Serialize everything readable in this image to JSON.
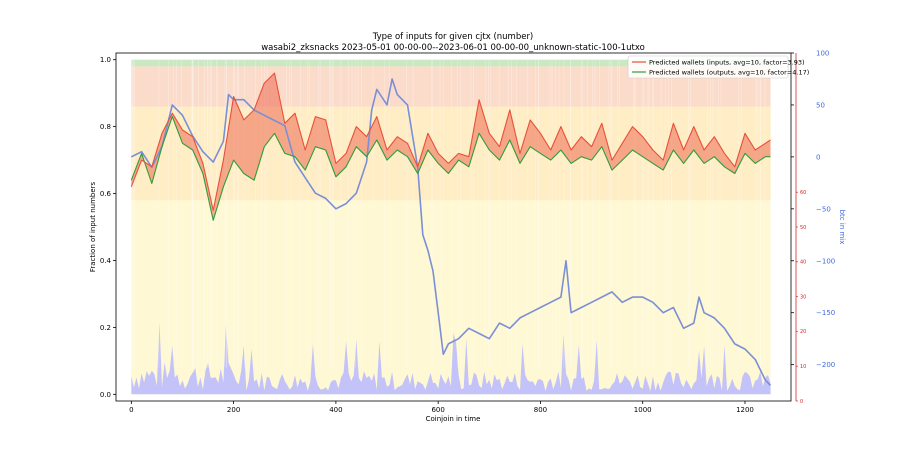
{
  "chart_data": {
    "type": "line",
    "title": "Type of inputs for given cjtx (number)",
    "subtitle": "wasabi2_zksnacks 2023-05-01 00-00-00--2023-06-01 00-00-00_unknown-static-100-1utxo",
    "xlabel": "Coinjoin in time",
    "ylabel": "Fraction of input numbers",
    "y2label": "btc in mix",
    "xlim": [
      -30,
      1290
    ],
    "ylim": [
      -0.02,
      1.02
    ],
    "y2lim": [
      -235,
      100
    ],
    "y3lim": [
      0,
      100
    ],
    "xticks": [
      "0",
      "200",
      "400",
      "600",
      "800",
      "1000",
      "1200"
    ],
    "yticks": [
      "0.0",
      "0.2",
      "0.4",
      "0.6",
      "0.8",
      "1.0"
    ],
    "y2ticks": [
      "100",
      "50",
      "0",
      "−50",
      "−100",
      "−150",
      "−200"
    ],
    "y3ticks": [
      "60",
      "50",
      "40",
      "30",
      "20",
      "10",
      "0"
    ],
    "legend_position": "top-right",
    "grid": false,
    "series": [
      {
        "name": "Predicted wallets (inputs, avg=10, factor=3.93)",
        "color": "#e8503a",
        "axis": "fraction",
        "points": [
          [
            0,
            0.62
          ],
          [
            20,
            0.7
          ],
          [
            40,
            0.68
          ],
          [
            60,
            0.78
          ],
          [
            80,
            0.84
          ],
          [
            100,
            0.79
          ],
          [
            120,
            0.77
          ],
          [
            140,
            0.69
          ],
          [
            160,
            0.55
          ],
          [
            180,
            0.7
          ],
          [
            200,
            0.89
          ],
          [
            220,
            0.82
          ],
          [
            240,
            0.85
          ],
          [
            260,
            0.93
          ],
          [
            280,
            0.96
          ],
          [
            300,
            0.81
          ],
          [
            320,
            0.84
          ],
          [
            340,
            0.73
          ],
          [
            360,
            0.83
          ],
          [
            380,
            0.82
          ],
          [
            400,
            0.69
          ],
          [
            420,
            0.72
          ],
          [
            440,
            0.8
          ],
          [
            460,
            0.77
          ],
          [
            480,
            0.83
          ],
          [
            500,
            0.73
          ],
          [
            520,
            0.77
          ],
          [
            540,
            0.75
          ],
          [
            560,
            0.68
          ],
          [
            580,
            0.78
          ],
          [
            600,
            0.72
          ],
          [
            620,
            0.69
          ],
          [
            640,
            0.72
          ],
          [
            660,
            0.71
          ],
          [
            680,
            0.88
          ],
          [
            700,
            0.78
          ],
          [
            720,
            0.74
          ],
          [
            740,
            0.85
          ],
          [
            760,
            0.72
          ],
          [
            780,
            0.82
          ],
          [
            800,
            0.78
          ],
          [
            820,
            0.73
          ],
          [
            840,
            0.8
          ],
          [
            860,
            0.73
          ],
          [
            880,
            0.77
          ],
          [
            900,
            0.74
          ],
          [
            920,
            0.81
          ],
          [
            940,
            0.7
          ],
          [
            960,
            0.75
          ],
          [
            980,
            0.8
          ],
          [
            1000,
            0.77
          ],
          [
            1020,
            0.73
          ],
          [
            1040,
            0.7
          ],
          [
            1060,
            0.81
          ],
          [
            1080,
            0.73
          ],
          [
            1100,
            0.8
          ],
          [
            1120,
            0.73
          ],
          [
            1140,
            0.77
          ],
          [
            1160,
            0.72
          ],
          [
            1180,
            0.68
          ],
          [
            1200,
            0.78
          ],
          [
            1220,
            0.73
          ],
          [
            1240,
            0.75
          ],
          [
            1250,
            0.76
          ]
        ]
      },
      {
        "name": "Predicted wallets (outputs, avg=10, factor=4.17)",
        "color": "#2e9e3a",
        "axis": "fraction",
        "points": [
          [
            0,
            0.64
          ],
          [
            20,
            0.72
          ],
          [
            40,
            0.63
          ],
          [
            60,
            0.74
          ],
          [
            80,
            0.83
          ],
          [
            100,
            0.75
          ],
          [
            120,
            0.73
          ],
          [
            140,
            0.66
          ],
          [
            160,
            0.52
          ],
          [
            180,
            0.62
          ],
          [
            200,
            0.7
          ],
          [
            220,
            0.66
          ],
          [
            240,
            0.64
          ],
          [
            260,
            0.74
          ],
          [
            280,
            0.78
          ],
          [
            300,
            0.72
          ],
          [
            320,
            0.71
          ],
          [
            340,
            0.67
          ],
          [
            360,
            0.74
          ],
          [
            380,
            0.73
          ],
          [
            400,
            0.65
          ],
          [
            420,
            0.68
          ],
          [
            440,
            0.74
          ],
          [
            460,
            0.71
          ],
          [
            480,
            0.76
          ],
          [
            500,
            0.7
          ],
          [
            520,
            0.73
          ],
          [
            540,
            0.71
          ],
          [
            560,
            0.66
          ],
          [
            580,
            0.73
          ],
          [
            600,
            0.69
          ],
          [
            620,
            0.66
          ],
          [
            640,
            0.7
          ],
          [
            660,
            0.68
          ],
          [
            680,
            0.78
          ],
          [
            700,
            0.73
          ],
          [
            720,
            0.7
          ],
          [
            740,
            0.76
          ],
          [
            760,
            0.69
          ],
          [
            780,
            0.74
          ],
          [
            800,
            0.72
          ],
          [
            820,
            0.7
          ],
          [
            840,
            0.73
          ],
          [
            860,
            0.69
          ],
          [
            880,
            0.71
          ],
          [
            900,
            0.7
          ],
          [
            920,
            0.74
          ],
          [
            940,
            0.67
          ],
          [
            960,
            0.7
          ],
          [
            980,
            0.73
          ],
          [
            1000,
            0.71
          ],
          [
            1020,
            0.69
          ],
          [
            1040,
            0.67
          ],
          [
            1060,
            0.73
          ],
          [
            1080,
            0.69
          ],
          [
            1100,
            0.73
          ],
          [
            1120,
            0.69
          ],
          [
            1140,
            0.71
          ],
          [
            1160,
            0.68
          ],
          [
            1180,
            0.66
          ],
          [
            1200,
            0.72
          ],
          [
            1220,
            0.69
          ],
          [
            1240,
            0.71
          ],
          [
            1250,
            0.71
          ]
        ]
      },
      {
        "color": "#7a8fd6",
        "axis": "btc",
        "points": [
          [
            0,
            0
          ],
          [
            20,
            5
          ],
          [
            40,
            -10
          ],
          [
            60,
            10
          ],
          [
            80,
            50
          ],
          [
            100,
            40
          ],
          [
            120,
            20
          ],
          [
            140,
            5
          ],
          [
            160,
            -5
          ],
          [
            180,
            15
          ],
          [
            190,
            60
          ],
          [
            200,
            55
          ],
          [
            220,
            55
          ],
          [
            240,
            45
          ],
          [
            260,
            40
          ],
          [
            280,
            35
          ],
          [
            300,
            30
          ],
          [
            320,
            -5
          ],
          [
            340,
            -20
          ],
          [
            360,
            -35
          ],
          [
            380,
            -40
          ],
          [
            400,
            -50
          ],
          [
            420,
            -45
          ],
          [
            440,
            -35
          ],
          [
            460,
            -5
          ],
          [
            470,
            45
          ],
          [
            480,
            65
          ],
          [
            500,
            50
          ],
          [
            510,
            75
          ],
          [
            520,
            60
          ],
          [
            540,
            50
          ],
          [
            560,
            -10
          ],
          [
            570,
            -75
          ],
          [
            580,
            -90
          ],
          [
            590,
            -110
          ],
          [
            600,
            -150
          ],
          [
            610,
            -190
          ],
          [
            620,
            -180
          ],
          [
            640,
            -175
          ],
          [
            660,
            -165
          ],
          [
            680,
            -170
          ],
          [
            700,
            -175
          ],
          [
            720,
            -160
          ],
          [
            740,
            -165
          ],
          [
            760,
            -155
          ],
          [
            780,
            -150
          ],
          [
            800,
            -145
          ],
          [
            820,
            -140
          ],
          [
            840,
            -135
          ],
          [
            850,
            -100
          ],
          [
            860,
            -150
          ],
          [
            880,
            -145
          ],
          [
            900,
            -140
          ],
          [
            920,
            -135
          ],
          [
            940,
            -130
          ],
          [
            960,
            -140
          ],
          [
            980,
            -135
          ],
          [
            1000,
            -135
          ],
          [
            1020,
            -140
          ],
          [
            1040,
            -150
          ],
          [
            1060,
            -145
          ],
          [
            1080,
            -165
          ],
          [
            1100,
            -160
          ],
          [
            1110,
            -135
          ],
          [
            1120,
            -150
          ],
          [
            1140,
            -155
          ],
          [
            1160,
            -165
          ],
          [
            1180,
            -180
          ],
          [
            1200,
            -185
          ],
          [
            1220,
            -195
          ],
          [
            1240,
            -215
          ],
          [
            1250,
            -220
          ]
        ]
      }
    ],
    "background_band_colors": [
      "#fff3b0",
      "#ffd9a8",
      "#f9c9c4",
      "#bde3bd",
      "#b8b8ff"
    ]
  }
}
